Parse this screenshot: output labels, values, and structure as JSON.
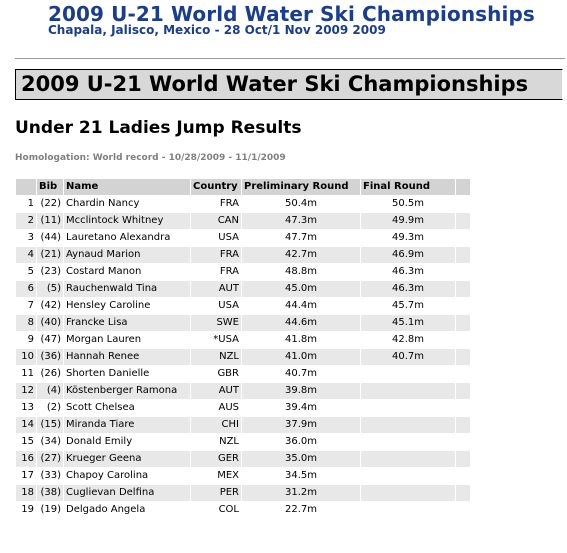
{
  "header": {
    "title": "2009 U-21 World Water Ski Championships",
    "subtitle": "Chapala, Jalisco, Mexico - 28 Oct/1 Nov 2009 2009"
  },
  "banner": {
    "title": "2009 U-21 World Water Ski Championships"
  },
  "event": {
    "title": "Under 21 Ladies Jump Results",
    "homologation": "Homologation: World record - 10/28/2009 - 11/1/2009"
  },
  "table": {
    "columns": [
      "",
      "Bib",
      "Name",
      "Country",
      "Preliminary Round",
      "Final Round"
    ],
    "rows": [
      {
        "rank": "1",
        "bib": "(22)",
        "name": "Chardin Nancy",
        "country": "FRA",
        "prelim": "50.4m",
        "final": "50.5m"
      },
      {
        "rank": "2",
        "bib": "(11)",
        "name": "Mcclintock Whitney",
        "country": "CAN",
        "prelim": "47.3m",
        "final": "49.9m"
      },
      {
        "rank": "3",
        "bib": "(44)",
        "name": "Lauretano Alexandra",
        "country": "USA",
        "prelim": "47.7m",
        "final": "49.3m"
      },
      {
        "rank": "4",
        "bib": "(21)",
        "name": "Aynaud Marion",
        "country": "FRA",
        "prelim": "42.7m",
        "final": "46.9m"
      },
      {
        "rank": "5",
        "bib": "(23)",
        "name": "Costard Manon",
        "country": "FRA",
        "prelim": "48.8m",
        "final": "46.3m"
      },
      {
        "rank": "6",
        "bib": "(5)",
        "name": "Rauchenwald Tina",
        "country": "AUT",
        "prelim": "45.0m",
        "final": "46.3m"
      },
      {
        "rank": "7",
        "bib": "(42)",
        "name": "Hensley Caroline",
        "country": "USA",
        "prelim": "44.4m",
        "final": "45.7m"
      },
      {
        "rank": "8",
        "bib": "(40)",
        "name": "Francke Lisa",
        "country": "SWE",
        "prelim": "44.6m",
        "final": "45.1m"
      },
      {
        "rank": "9",
        "bib": "(47)",
        "name": "Morgan Lauren",
        "country": "*USA",
        "prelim": "41.8m",
        "final": "42.8m"
      },
      {
        "rank": "10",
        "bib": "(36)",
        "name": "Hannah Renee",
        "country": "NZL",
        "prelim": "41.0m",
        "final": "40.7m"
      },
      {
        "rank": "11",
        "bib": "(26)",
        "name": "Shorten Danielle",
        "country": "GBR",
        "prelim": "40.7m",
        "final": ""
      },
      {
        "rank": "12",
        "bib": "(4)",
        "name": "Köstenberger Ramona",
        "country": "AUT",
        "prelim": "39.8m",
        "final": ""
      },
      {
        "rank": "13",
        "bib": "(2)",
        "name": "Scott Chelsea",
        "country": "AUS",
        "prelim": "39.4m",
        "final": ""
      },
      {
        "rank": "14",
        "bib": "(15)",
        "name": "Miranda Tiare",
        "country": "CHI",
        "prelim": "37.9m",
        "final": ""
      },
      {
        "rank": "15",
        "bib": "(34)",
        "name": "Donald Emily",
        "country": "NZL",
        "prelim": "36.0m",
        "final": ""
      },
      {
        "rank": "16",
        "bib": "(27)",
        "name": "Krueger Geena",
        "country": "GER",
        "prelim": "35.0m",
        "final": ""
      },
      {
        "rank": "17",
        "bib": "(33)",
        "name": "Chapoy Carolina",
        "country": "MEX",
        "prelim": "34.5m",
        "final": ""
      },
      {
        "rank": "18",
        "bib": "(38)",
        "name": "Cuglievan Delfina",
        "country": "PER",
        "prelim": "31.2m",
        "final": ""
      },
      {
        "rank": "19",
        "bib": "(19)",
        "name": "Delgado Angela",
        "country": "COL",
        "prelim": "22.7m",
        "final": ""
      }
    ]
  }
}
